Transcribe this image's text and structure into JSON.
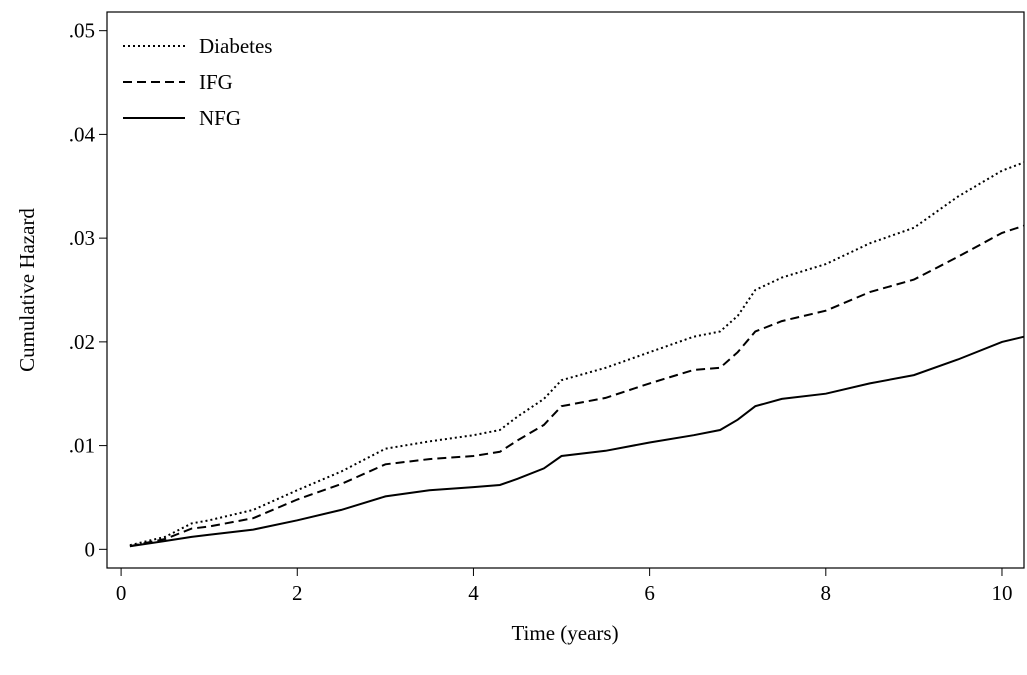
{
  "chart_data": {
    "type": "line",
    "xlabel": "Time (years)",
    "ylabel": "Cumulative Hazard",
    "x": [
      0.1,
      0.5,
      0.8,
      1,
      1.5,
      2,
      2.5,
      3,
      3.5,
      4,
      4.3,
      4.5,
      4.8,
      5,
      5.5,
      6,
      6.5,
      6.8,
      7,
      7.2,
      7.5,
      8,
      8.5,
      9,
      9.5,
      10,
      10.25
    ],
    "series": [
      {
        "name": "Diabetes",
        "color": "#000000",
        "dash": "2,3",
        "values": [
          0.0004,
          0.0012,
          0.0025,
          0.0028,
          0.0038,
          0.0057,
          0.0075,
          0.0097,
          0.0104,
          0.011,
          0.0115,
          0.0128,
          0.0145,
          0.0163,
          0.0175,
          0.019,
          0.0205,
          0.021,
          0.0225,
          0.025,
          0.0262,
          0.0275,
          0.0295,
          0.031,
          0.034,
          0.0365,
          0.0373
        ]
      },
      {
        "name": "IFG",
        "color": "#000000",
        "dash": "9,5",
        "values": [
          0.0003,
          0.001,
          0.002,
          0.0022,
          0.003,
          0.0048,
          0.0063,
          0.0082,
          0.0087,
          0.009,
          0.0094,
          0.0105,
          0.012,
          0.0138,
          0.0146,
          0.016,
          0.0173,
          0.0175,
          0.019,
          0.021,
          0.022,
          0.023,
          0.0248,
          0.026,
          0.0282,
          0.0305,
          0.0312
        ]
      },
      {
        "name": "NFG",
        "color": "#000000",
        "dash": "none",
        "values": [
          0.0003,
          0.0008,
          0.0012,
          0.0014,
          0.0019,
          0.0028,
          0.0038,
          0.0051,
          0.0057,
          0.006,
          0.0062,
          0.0068,
          0.0078,
          0.009,
          0.0095,
          0.0103,
          0.011,
          0.0115,
          0.0125,
          0.0138,
          0.0145,
          0.015,
          0.016,
          0.0168,
          0.0183,
          0.02,
          0.0205
        ]
      }
    ],
    "xlim": [
      -0.16,
      10.25
    ],
    "xticks": [
      0,
      2,
      4,
      6,
      8,
      10
    ],
    "ylim": [
      -0.0018,
      0.0518
    ],
    "yticks": [
      0,
      {
        "value": 0.01,
        "label": ".01"
      },
      {
        "value": 0.02,
        "label": ".02"
      },
      {
        "value": 0.03,
        "label": ".03"
      },
      {
        "value": 0.04,
        "label": ".04"
      },
      {
        "value": 0.05,
        "label": ".05"
      }
    ],
    "legend": "upper left",
    "grid": false
  }
}
